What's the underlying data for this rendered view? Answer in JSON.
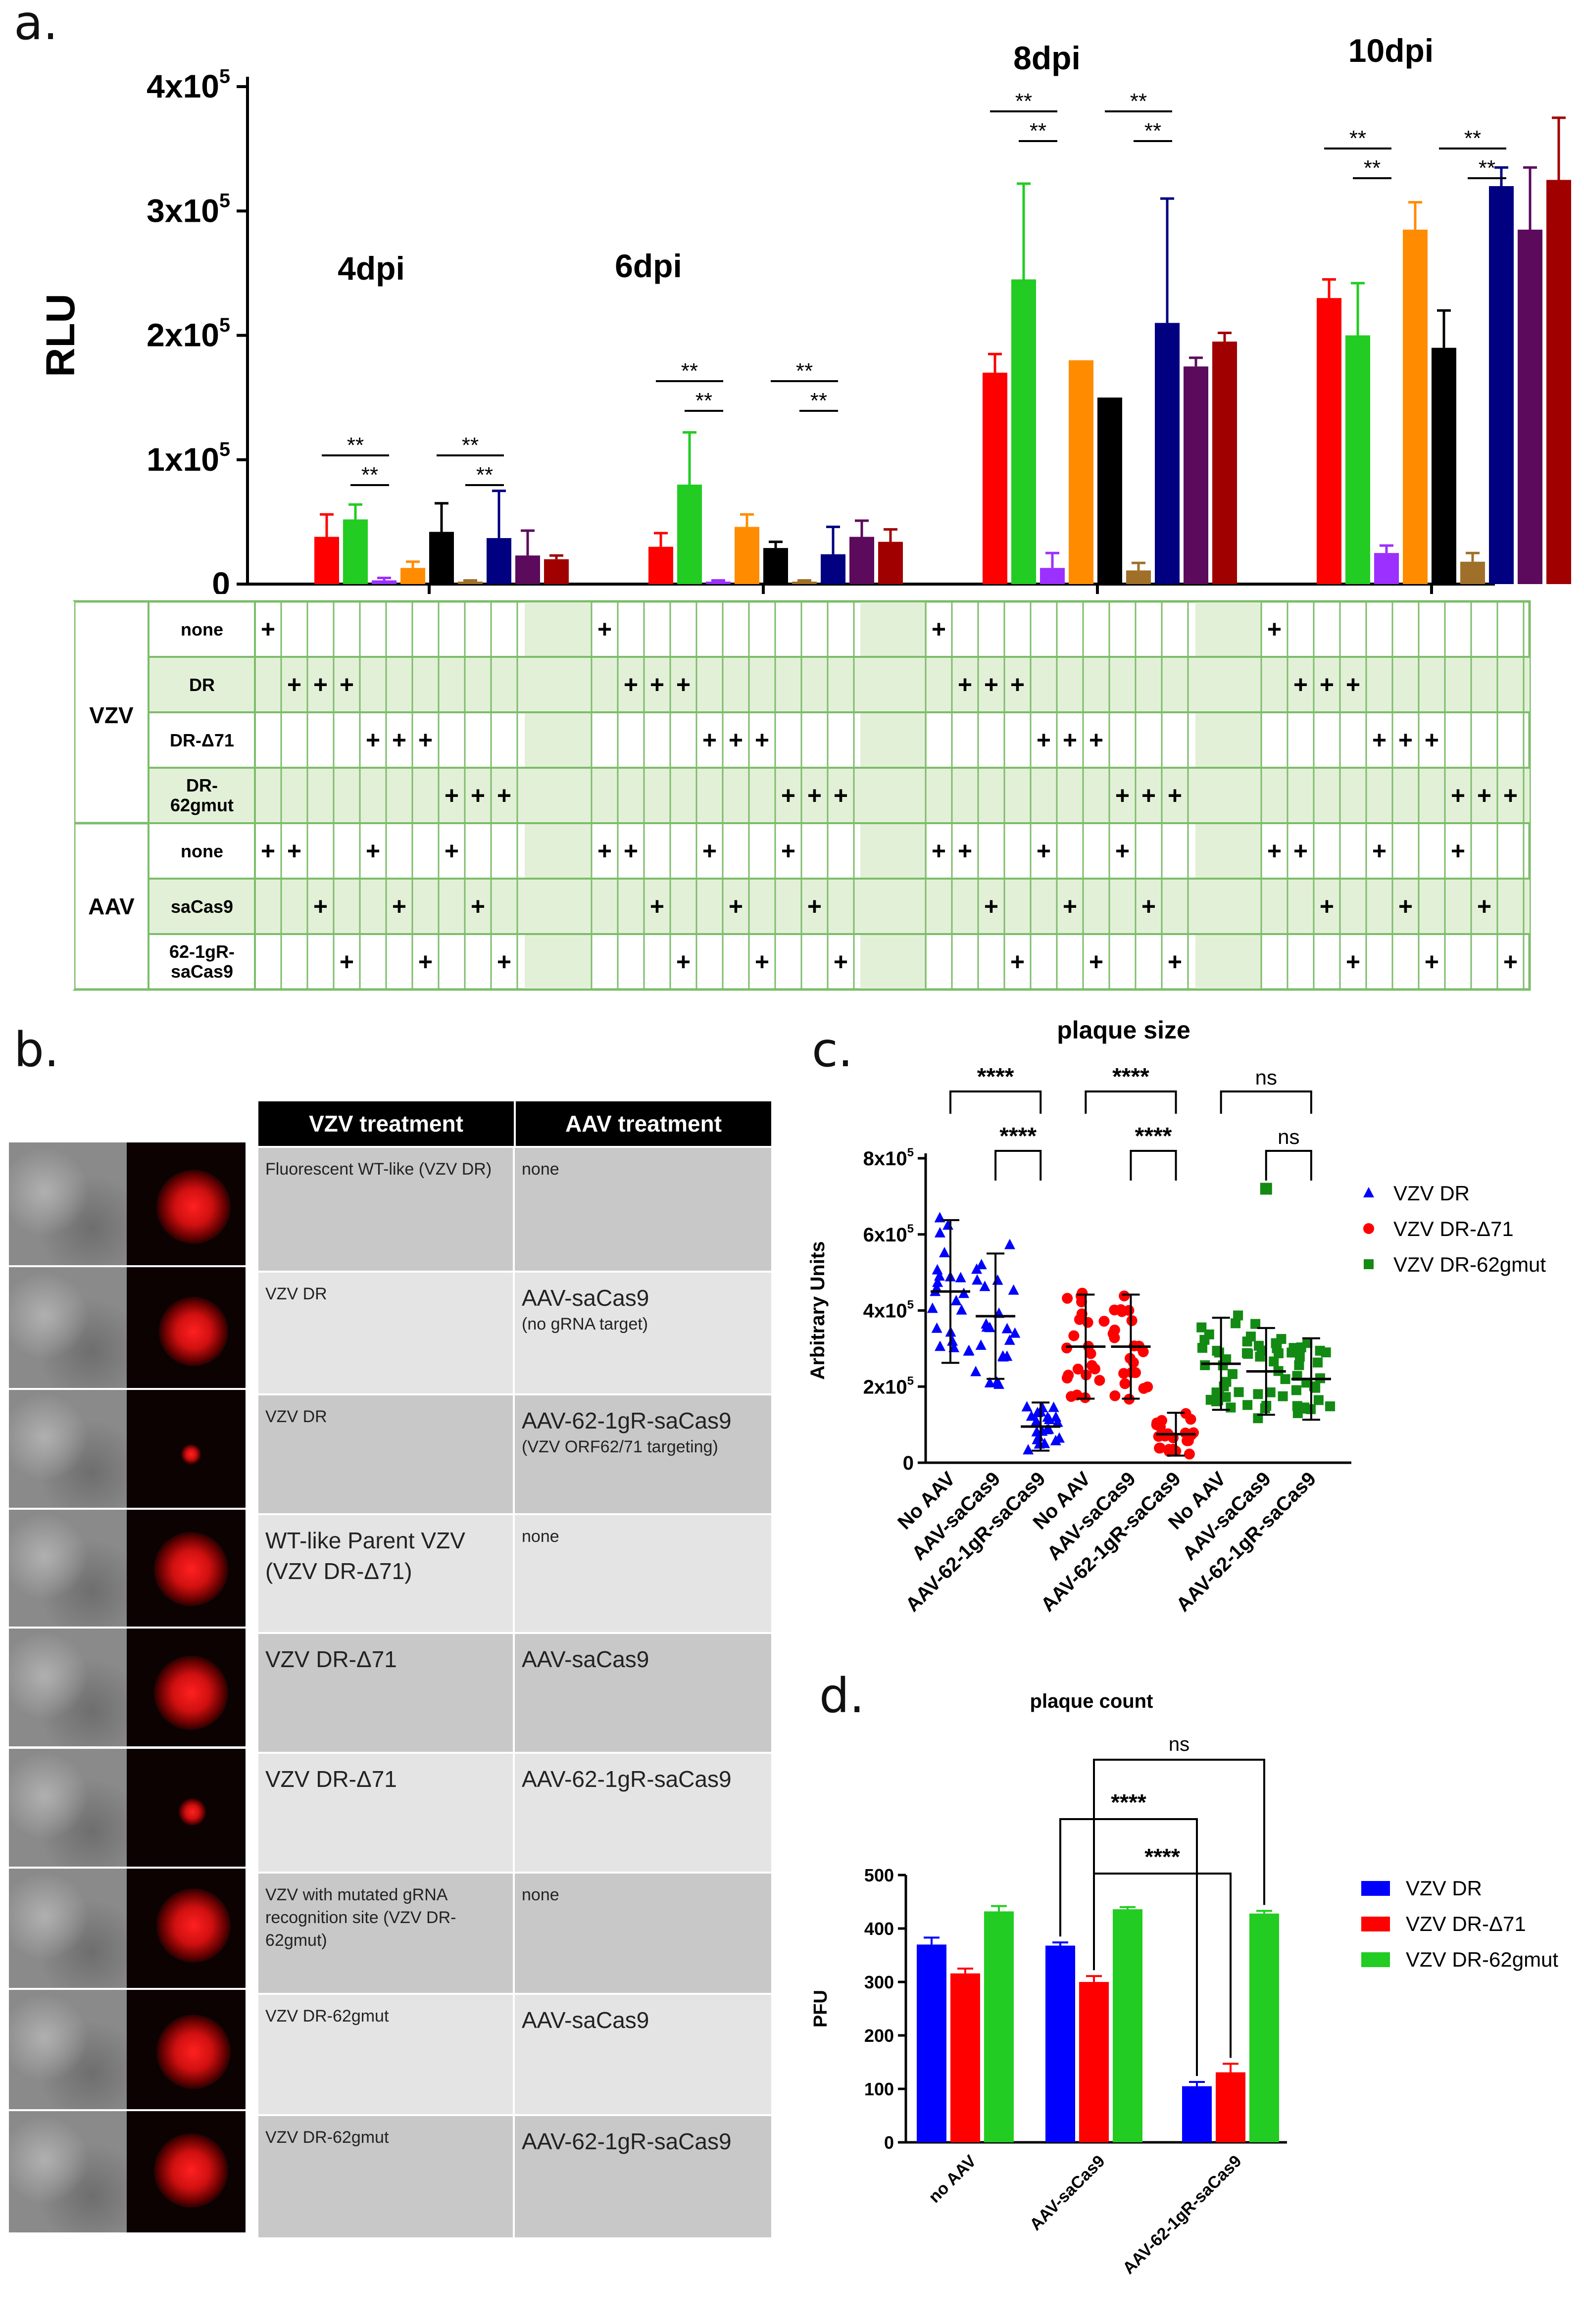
{
  "panels": {
    "a": "a.",
    "b": "b.",
    "c": "c.",
    "d": "d."
  },
  "colors": {
    "red": "#ff0000",
    "green": "#22cc22",
    "purple": "#9b30ff",
    "orange": "#ff8c00",
    "black": "#000000",
    "brown": "#a0702a",
    "navy": "#000080",
    "plum": "#5c0a5c",
    "darkred": "#a00000",
    "blue": "#0000ff",
    "grid_green": "#7cbd6a",
    "fill_green": "#e3f0d8"
  },
  "chart_data": [
    {
      "type": "bar",
      "panel": "a",
      "ylabel": "RLU",
      "ylim": [
        0,
        400000
      ],
      "yticks": [
        "0",
        "1x10",
        "2x10",
        "3x10",
        "4x10"
      ],
      "ytick_exp": "5",
      "groups": [
        {
          "label": "4dpi",
          "values": [
            0,
            38000,
            52000,
            3000,
            13000,
            42000,
            2000,
            37000,
            23000,
            20000
          ],
          "errors": [
            0,
            18000,
            12000,
            2000,
            5000,
            23000,
            1000,
            38000,
            20000,
            3000
          ],
          "sig": [
            {
              "text": "**",
              "x1": 1,
              "x2": 3
            },
            {
              "text": "**",
              "x1": 2,
              "x2": 3
            },
            {
              "text": "**",
              "x1": 5,
              "x2": 7
            },
            {
              "text": "**",
              "x1": 6,
              "x2": 7
            }
          ]
        },
        {
          "label": "6dpi",
          "values": [
            0,
            30000,
            80000,
            2000,
            46000,
            29000,
            2000,
            24000,
            38000,
            34000
          ],
          "errors": [
            0,
            11000,
            42000,
            1000,
            10000,
            5000,
            1000,
            22000,
            13000,
            10000
          ],
          "sig": [
            {
              "text": "**",
              "x1": 1,
              "x2": 3
            },
            {
              "text": "**",
              "x1": 2,
              "x2": 3
            },
            {
              "text": "**",
              "x1": 5,
              "x2": 7
            },
            {
              "text": "**",
              "x1": 6,
              "x2": 7
            }
          ]
        },
        {
          "label": "8dpi",
          "values": [
            0,
            170000,
            245000,
            13000,
            180000,
            150000,
            11000,
            210000,
            175000,
            195000
          ],
          "errors": [
            0,
            15000,
            77000,
            12000,
            0,
            0,
            6000,
            100000,
            7000,
            7000
          ],
          "sig": [
            {
              "text": "**",
              "x1": 1,
              "x2": 3
            },
            {
              "text": "**",
              "x1": 2,
              "x2": 3
            },
            {
              "text": "**",
              "x1": 5,
              "x2": 7
            },
            {
              "text": "**",
              "x1": 6,
              "x2": 7
            }
          ]
        },
        {
          "label": "10dpi",
          "values": [
            0,
            230000,
            200000,
            25000,
            285000,
            190000,
            18000,
            320000,
            285000,
            325000
          ],
          "errors": [
            0,
            15000,
            42000,
            6000,
            22000,
            30000,
            7000,
            15000,
            50000,
            50000
          ],
          "sig": [
            {
              "text": "**",
              "x1": 1,
              "x2": 3
            },
            {
              "text": "**",
              "x1": 2,
              "x2": 3
            },
            {
              "text": "**",
              "x1": 5,
              "x2": 7
            },
            {
              "text": "**",
              "x1": 6,
              "x2": 7
            }
          ]
        }
      ],
      "bar_colors": [
        "#3b3bff",
        "#ff0000",
        "#22cc22",
        "#9b30ff",
        "#ff8c00",
        "#000000",
        "#a0702a",
        "#000080",
        "#5c0a5c",
        "#a00000"
      ]
    },
    {
      "type": "scatter",
      "panel": "c",
      "title": "plaque size",
      "ylabel": "Arbitrary Units",
      "ylim": [
        0,
        800000
      ],
      "yticks": [
        "0",
        "2x10",
        "4x10",
        "6x10",
        "8x10"
      ],
      "ytick_exp": "5",
      "categories": [
        "No AAV",
        "AAV-saCas9",
        "AAV-62-1gR-saCas9",
        "No AAV",
        "AAV-saCas9",
        "AAV-62-1gR-saCas9",
        "No AAV",
        "AAV-saCas9",
        "AAV-62-1gR-saCas9"
      ],
      "series": [
        {
          "name": "VZV DR",
          "marker": "triangle",
          "color": "#0000ff",
          "means": [
            450000,
            385000,
            95000
          ]
        },
        {
          "name": "VZV DR-Δ71",
          "marker": "circle",
          "color": "#ff0000",
          "means": [
            305000,
            305000,
            75000
          ]
        },
        {
          "name": "VZV DR-62gmut",
          "marker": "square",
          "color": "#138a13",
          "means": [
            260000,
            240000,
            220000
          ]
        }
      ],
      "sig": [
        {
          "text": "****",
          "x1": 0,
          "x2": 2,
          "level": 0
        },
        {
          "text": "****",
          "x1": 1,
          "x2": 2,
          "level": 1
        },
        {
          "text": "****",
          "x1": 3,
          "x2": 5,
          "level": 0
        },
        {
          "text": "****",
          "x1": 4,
          "x2": 5,
          "level": 1
        },
        {
          "text": "ns",
          "x1": 6,
          "x2": 8,
          "level": 0
        },
        {
          "text": "ns",
          "x1": 7,
          "x2": 8,
          "level": 1
        }
      ]
    },
    {
      "type": "bar",
      "panel": "d",
      "title": "plaque count",
      "ylabel": "PFU",
      "ylim": [
        0,
        500
      ],
      "yticks": [
        "0",
        "100",
        "200",
        "300",
        "400",
        "500"
      ],
      "categories": [
        "no AAV",
        "AAV-saCas9",
        "AAV-62-1gR-saCas9"
      ],
      "series": [
        {
          "name": "VZV DR",
          "color": "#0000ff",
          "values": [
            370,
            368,
            105
          ],
          "errors": [
            13,
            6,
            8
          ]
        },
        {
          "name": "VZV DR-Δ71",
          "color": "#ff0000",
          "values": [
            316,
            300,
            131
          ],
          "errors": [
            9,
            11,
            16
          ]
        },
        {
          "name": "VZV DR-62gmut",
          "color": "#22cc22",
          "values": [
            432,
            436,
            428
          ],
          "errors": [
            10,
            4,
            5
          ]
        }
      ],
      "sig": [
        {
          "text": "ns",
          "from": "AAV-saCas9 / VZV DR-Δ71",
          "to": "AAV-62-1gR-saCas9 / VZV DR-62gmut"
        },
        {
          "text": "****",
          "from": "AAV-saCas9 / VZV DR",
          "to": "AAV-62-1gR-saCas9 / VZV DR"
        },
        {
          "text": "****",
          "from": "AAV-saCas9 / VZV DR-Δ71",
          "to": "AAV-62-1gR-saCas9 / VZV DR-Δ71"
        }
      ]
    }
  ],
  "grid": {
    "group_label_vzv": "VZV",
    "group_label_aav": "AAV",
    "rows": [
      {
        "label": "none",
        "plus_cols": [
          0
        ]
      },
      {
        "label": "DR",
        "plus_cols": [
          1,
          2,
          3
        ]
      },
      {
        "label": "DR-Δ71",
        "plus_cols": [
          4,
          5,
          6
        ]
      },
      {
        "label": "DR-\n62gmut",
        "plus_cols": [
          7,
          8,
          9
        ]
      },
      {
        "label": "none",
        "plus_cols": [
          0,
          1,
          4,
          7
        ]
      },
      {
        "label": "saCas9",
        "plus_cols": [
          2,
          5,
          8
        ]
      },
      {
        "label": "62-1gR-\nsaCas9",
        "plus_cols": [
          3,
          6,
          9
        ]
      }
    ],
    "mark": "+"
  },
  "table_b": {
    "headers": [
      "VZV treatment",
      "AAV treatment"
    ],
    "rows": [
      {
        "vzv": "Fluorescent WT-like (VZV DR)",
        "aav": "none",
        "vzv_size": "sm",
        "aav_size": "sm",
        "aav_sub": ""
      },
      {
        "vzv": "VZV DR",
        "aav": "AAV-saCas9",
        "vzv_size": "sm",
        "aav_size": "lg",
        "aav_sub": "(no gRNA target)"
      },
      {
        "vzv": "VZV DR",
        "aav": "AAV-62-1gR-saCas9",
        "vzv_size": "sm",
        "aav_size": "lg",
        "aav_sub": "(VZV ORF62/71 targeting)"
      },
      {
        "vzv": "WT-like Parent VZV (VZV DR-Δ71)",
        "aav": "none",
        "vzv_size": "lg",
        "aav_size": "sm",
        "aav_sub": ""
      },
      {
        "vzv": "VZV DR-Δ71",
        "aav": "AAV-saCas9",
        "vzv_size": "lg",
        "aav_size": "lg",
        "aav_sub": ""
      },
      {
        "vzv": "VZV DR-Δ71",
        "aav": "AAV-62-1gR-saCas9",
        "vzv_size": "lg",
        "aav_size": "lg",
        "aav_sub": ""
      },
      {
        "vzv": "VZV with mutated gRNA recognition site (VZV DR-62gmut)",
        "aav": "none",
        "vzv_size": "sm",
        "aav_size": "sm",
        "aav_sub": ""
      },
      {
        "vzv": "VZV DR-62gmut",
        "aav": "AAV-saCas9",
        "vzv_size": "sm",
        "aav_size": "lg",
        "aav_sub": ""
      },
      {
        "vzv": "VZV DR-62gmut",
        "aav": "AAV-62-1gR-saCas9",
        "vzv_size": "sm",
        "aav_size": "lg",
        "aav_sub": ""
      }
    ]
  }
}
